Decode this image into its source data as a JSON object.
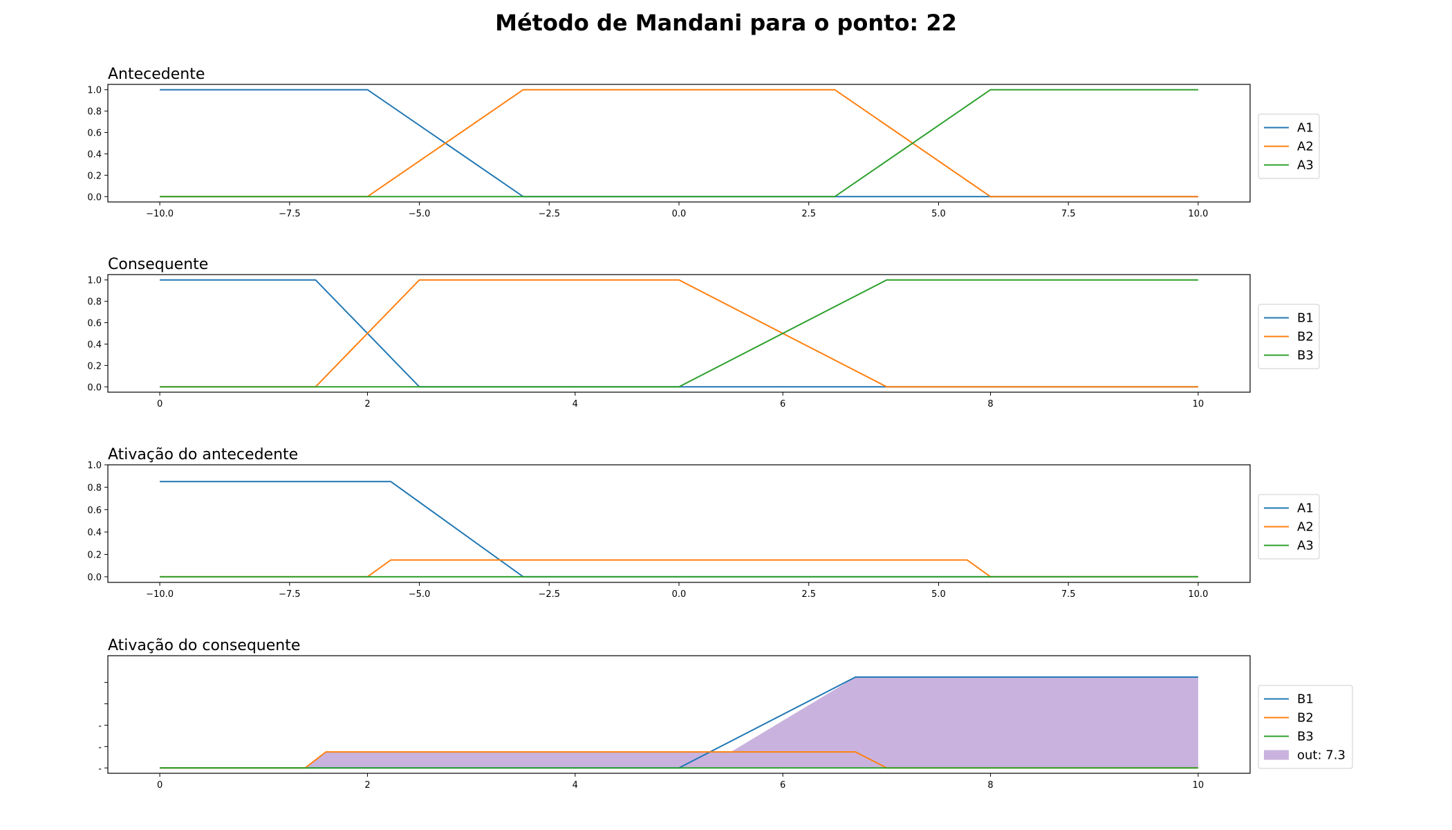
{
  "figure": {
    "title": "Método de Mandani para o ponto: 22"
  },
  "colors": {
    "blue": "#1f77b4",
    "orange": "#ff7f0e",
    "green": "#2ca02c",
    "fill": "#9467bd"
  },
  "chart_data": [
    {
      "type": "line",
      "title": "Antecedente",
      "xlim": [
        -11,
        11
      ],
      "ylim": [
        -0.05,
        1.05
      ],
      "xticks": [
        -10,
        -7.5,
        -5,
        -2.5,
        0,
        2.5,
        5,
        7.5,
        10
      ],
      "xtick_labels": [
        "−10.0",
        "−7.5",
        "−5.0",
        "−2.5",
        "0.0",
        "2.5",
        "5.0",
        "7.5",
        "10.0"
      ],
      "yticks": [
        0,
        0.2,
        0.4,
        0.6,
        0.8,
        1.0
      ],
      "ytick_labels": [
        "0.0",
        "0.2",
        "0.4",
        "0.6",
        "0.8",
        "1.0"
      ],
      "legend_position": "right",
      "series": [
        {
          "name": "A1",
          "color": "#1f77b4",
          "x": [
            -10,
            -6,
            -3,
            10
          ],
          "y": [
            1,
            1,
            0,
            0
          ]
        },
        {
          "name": "A2",
          "color": "#ff7f0e",
          "x": [
            -10,
            -6,
            -3,
            3,
            6,
            10
          ],
          "y": [
            0,
            0,
            1,
            1,
            0,
            0
          ]
        },
        {
          "name": "A3",
          "color": "#2ca02c",
          "x": [
            -10,
            3,
            6,
            10
          ],
          "y": [
            0,
            0,
            1,
            1
          ]
        }
      ]
    },
    {
      "type": "line",
      "title": "Consequente",
      "xlim": [
        -0.5,
        10.5
      ],
      "ylim": [
        -0.05,
        1.05
      ],
      "xticks": [
        0,
        2,
        4,
        6,
        8,
        10
      ],
      "xtick_labels": [
        "0",
        "2",
        "4",
        "6",
        "8",
        "10"
      ],
      "yticks": [
        0,
        0.2,
        0.4,
        0.6,
        0.8,
        1.0
      ],
      "ytick_labels": [
        "0.0",
        "0.2",
        "0.4",
        "0.6",
        "0.8",
        "1.0"
      ],
      "legend_position": "right",
      "series": [
        {
          "name": "B1",
          "color": "#1f77b4",
          "x": [
            0,
            1.5,
            2.5,
            10
          ],
          "y": [
            1,
            1,
            0,
            0
          ]
        },
        {
          "name": "B2",
          "color": "#ff7f0e",
          "x": [
            0,
            1.5,
            2.5,
            5,
            7,
            10
          ],
          "y": [
            0,
            0,
            1,
            1,
            0,
            0
          ]
        },
        {
          "name": "B3",
          "color": "#2ca02c",
          "x": [
            0,
            5,
            7,
            10
          ],
          "y": [
            0,
            0,
            1,
            1
          ]
        }
      ]
    },
    {
      "type": "line",
      "title": "Ativação do antecedente",
      "xlim": [
        -11,
        11
      ],
      "ylim": [
        -0.05,
        1.0
      ],
      "xticks": [
        -10,
        -7.5,
        -5,
        -2.5,
        0,
        2.5,
        5,
        7.5,
        10
      ],
      "xtick_labels": [
        "−10.0",
        "−7.5",
        "−5.0",
        "−2.5",
        "0.0",
        "2.5",
        "5.0",
        "7.5",
        "10.0"
      ],
      "yticks": [
        0,
        0.2,
        0.4,
        0.6,
        0.8,
        1.0
      ],
      "ytick_labels": [
        "0.0",
        "0.2",
        "0.4",
        "0.6",
        "0.8",
        "1.0"
      ],
      "legend_position": "right",
      "series": [
        {
          "name": "A1",
          "color": "#1f77b4",
          "x": [
            -10,
            -5.55,
            -3,
            10
          ],
          "y": [
            0.85,
            0.85,
            0,
            0
          ]
        },
        {
          "name": "A2",
          "color": "#ff7f0e",
          "x": [
            -10,
            -6,
            -5.55,
            5.55,
            6,
            10
          ],
          "y": [
            0,
            0,
            0.15,
            0.15,
            0,
            0
          ]
        },
        {
          "name": "A3",
          "color": "#2ca02c",
          "x": [
            -10,
            10
          ],
          "y": [
            0,
            0
          ]
        }
      ]
    },
    {
      "type": "area",
      "title": "Ativação do consequente",
      "xlim": [
        -0.5,
        10.5
      ],
      "ylim": [
        -0.05,
        1.05
      ],
      "xticks": [
        0,
        2,
        4,
        6,
        8,
        10
      ],
      "xtick_labels": [
        "0",
        "2",
        "4",
        "6",
        "8",
        "10"
      ],
      "yticks": [
        0,
        0.2,
        0.4,
        0.6,
        0.8
      ],
      "ytick_labels": [
        "-",
        "-",
        "-",
        "",
        ""
      ],
      "legend_position": "right",
      "series": [
        {
          "name": "B1",
          "color": "#1f77b4",
          "x": [
            0,
            5,
            6.7,
            10
          ],
          "y": [
            0,
            0,
            0.85,
            0.85
          ]
        },
        {
          "name": "B2",
          "color": "#ff7f0e",
          "x": [
            0,
            1.4,
            1.6,
            6.7,
            7,
            10
          ],
          "y": [
            0,
            0,
            0.15,
            0.15,
            0,
            0
          ]
        },
        {
          "name": "B3",
          "color": "#2ca02c",
          "x": [
            0,
            10
          ],
          "y": [
            0,
            0
          ]
        }
      ],
      "fill": {
        "name": "out: 7.3",
        "color": "#9467bd",
        "x": [
          0,
          1.4,
          1.6,
          5.5,
          6.7,
          10
        ],
        "y": [
          0,
          0,
          0.15,
          0.15,
          0.85,
          0.85
        ]
      }
    }
  ]
}
